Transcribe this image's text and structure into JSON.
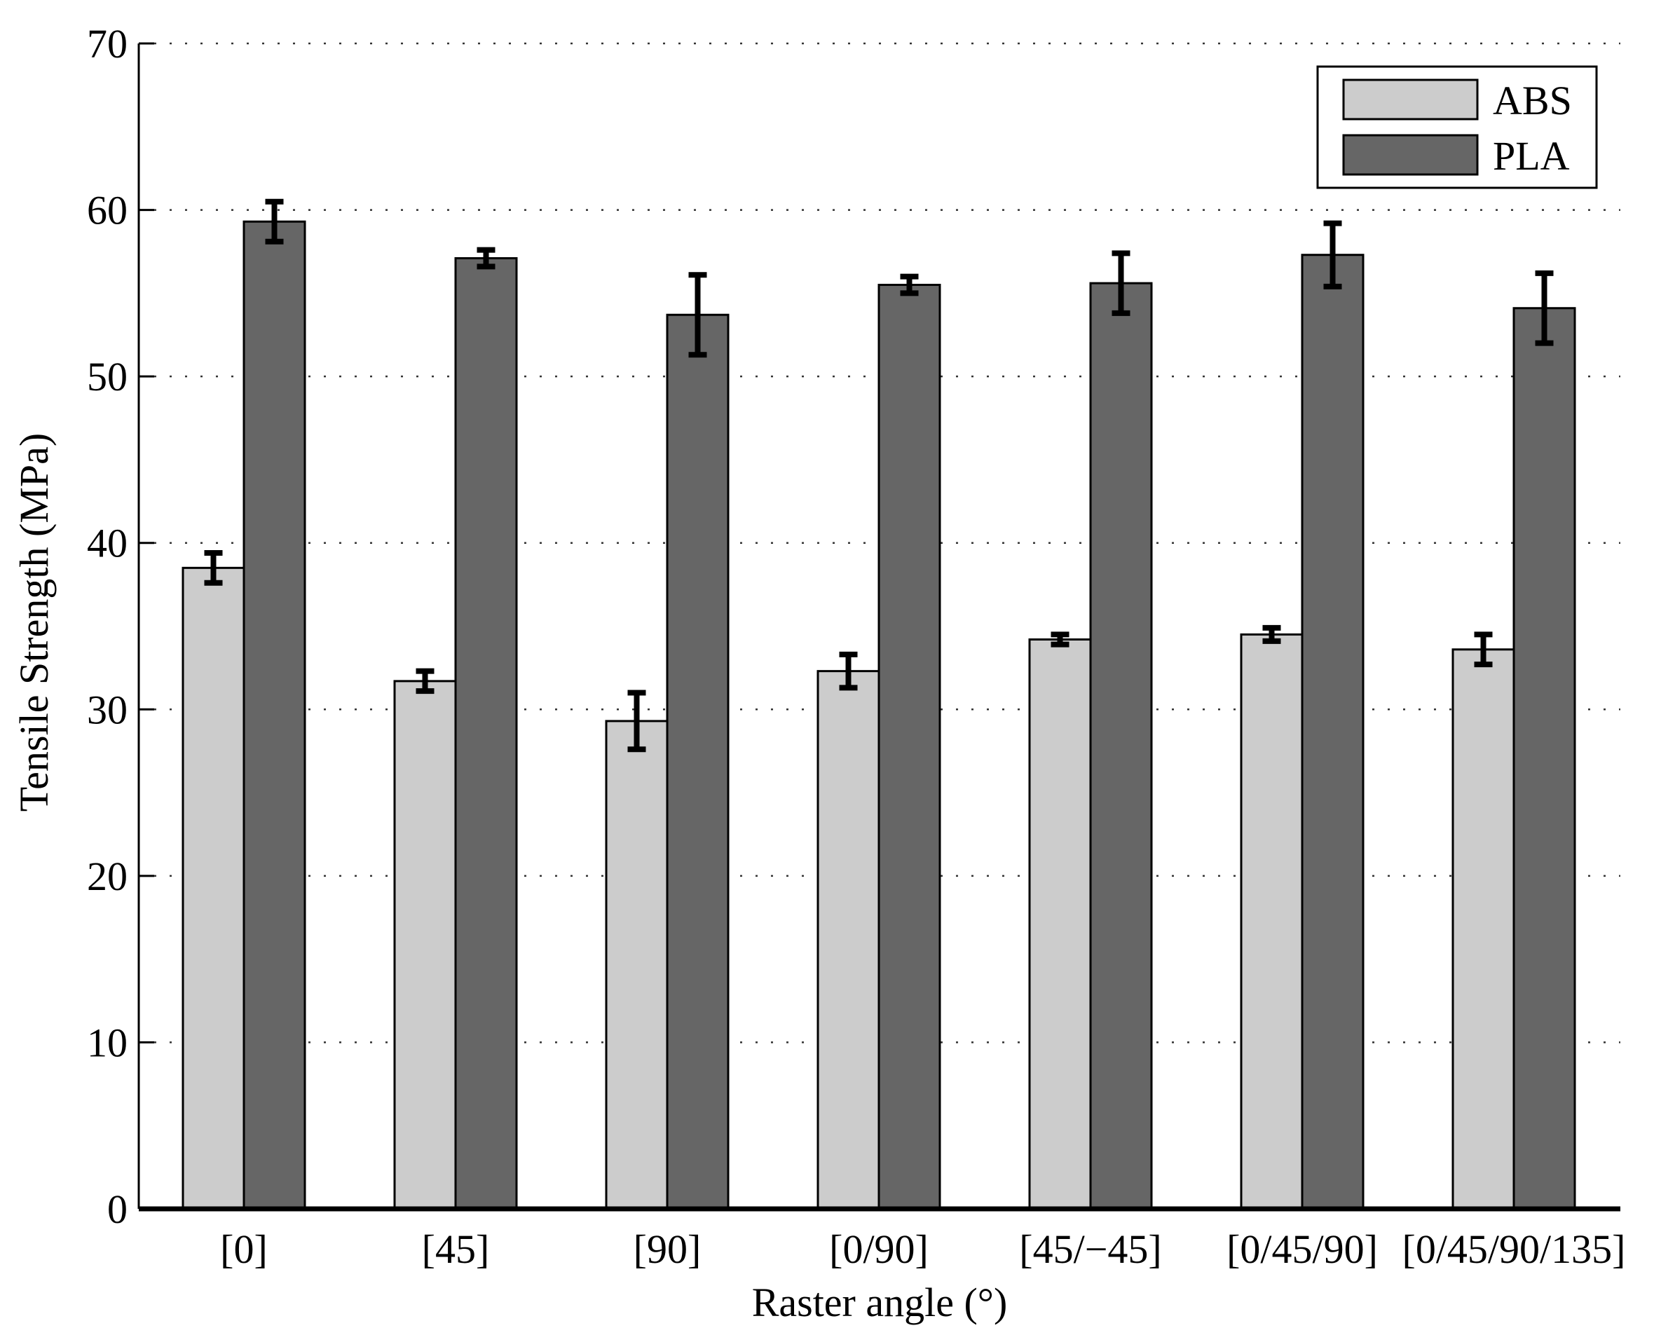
{
  "chart_data": {
    "type": "bar",
    "title": "",
    "xlabel": "Raster angle (°)",
    "ylabel": "Tensile Strength (MPa)",
    "ylim": [
      0,
      70
    ],
    "yticks": [
      0,
      10,
      20,
      30,
      40,
      50,
      60,
      70
    ],
    "ytick_labels": [
      "0",
      "10",
      "20",
      "30",
      "40",
      "50",
      "60",
      "70"
    ],
    "grid": "horizontal dotted",
    "legend_position": "top-right",
    "categories": [
      "[0]",
      "[45]",
      "[90]",
      "[0/90]",
      "[45/−45]",
      "[0/45/90]",
      "[0/45/90/135]"
    ],
    "series": [
      {
        "name": "ABS",
        "color": "#cccccc",
        "values": [
          38.5,
          31.7,
          29.3,
          32.3,
          34.2,
          34.5,
          33.6
        ],
        "error": [
          0.9,
          0.6,
          1.7,
          1.0,
          0.3,
          0.4,
          0.9
        ]
      },
      {
        "name": "PLA",
        "color": "#666666",
        "values": [
          59.3,
          57.1,
          53.7,
          55.5,
          55.6,
          57.3,
          54.1
        ],
        "error": [
          1.2,
          0.5,
          2.4,
          0.5,
          1.8,
          1.9,
          2.1
        ]
      }
    ]
  }
}
